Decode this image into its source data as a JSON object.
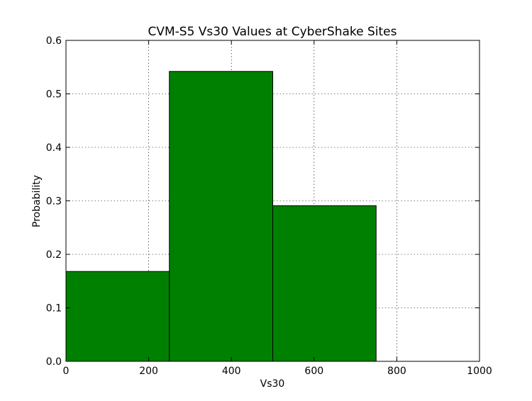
{
  "chart_data": {
    "type": "bar",
    "title": "CVM-S5 Vs30 Values at CyberShake Sites",
    "xlabel": "Vs30",
    "ylabel": "Probability",
    "xlim": [
      0,
      1000
    ],
    "ylim": [
      0,
      0.6
    ],
    "xticks": [
      "0",
      "200",
      "400",
      "600",
      "800",
      "1000"
    ],
    "yticks": [
      "0.0",
      "0.1",
      "0.2",
      "0.3",
      "0.4",
      "0.5",
      "0.6"
    ],
    "grid": true,
    "bins": [
      {
        "x0": 0,
        "x1": 250,
        "value": 0.168
      },
      {
        "x0": 250,
        "x1": 500,
        "value": 0.542
      },
      {
        "x0": 500,
        "x1": 750,
        "value": 0.291
      }
    ],
    "bar_color": "#008000",
    "edge_color": "#000000"
  }
}
